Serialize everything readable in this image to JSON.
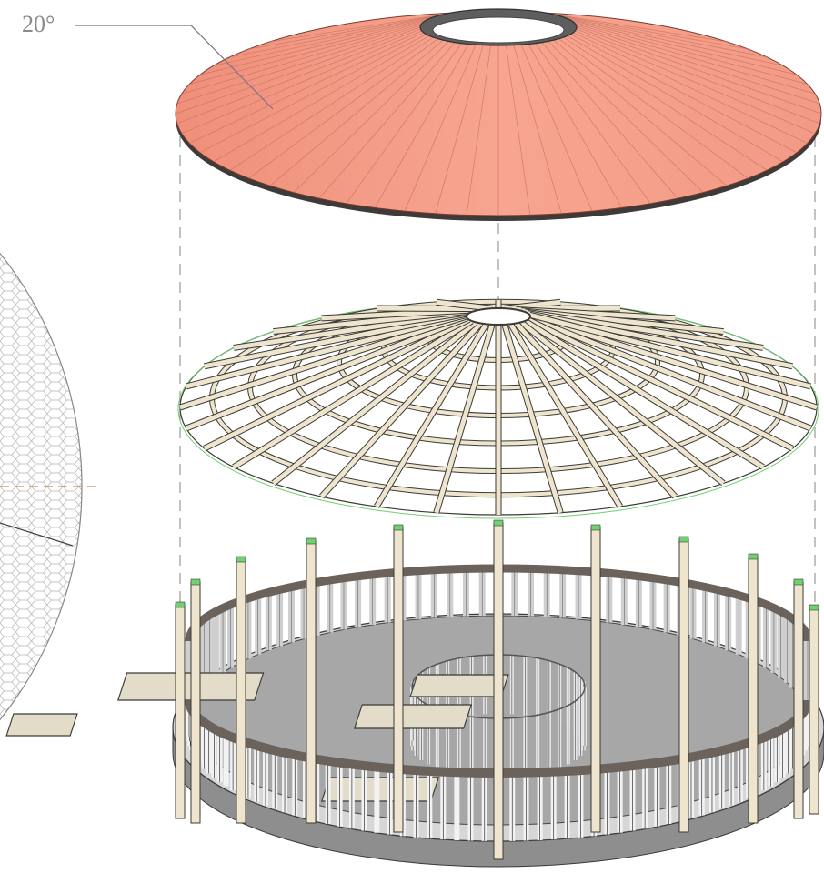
{
  "annotation": {
    "roof_angle": "20°"
  },
  "colors": {
    "roof": "#f49b86",
    "roof_edge": "#7a3a30",
    "timber": "#efe5cf",
    "timber_edge": "#3a3a36",
    "wall_panel": "#e9e9e9",
    "rail": "#6b625c",
    "floor": "#a7a7a7",
    "base": "#d6d6d6",
    "hex_grid": "#aaaaaa",
    "guide": "#9a9a9a",
    "axis": "#d08a3a",
    "post_cap": "#6fd16f"
  },
  "components": [
    "roof-cover",
    "roof-frame",
    "pavilion-base",
    "hex-pattern-plan"
  ]
}
